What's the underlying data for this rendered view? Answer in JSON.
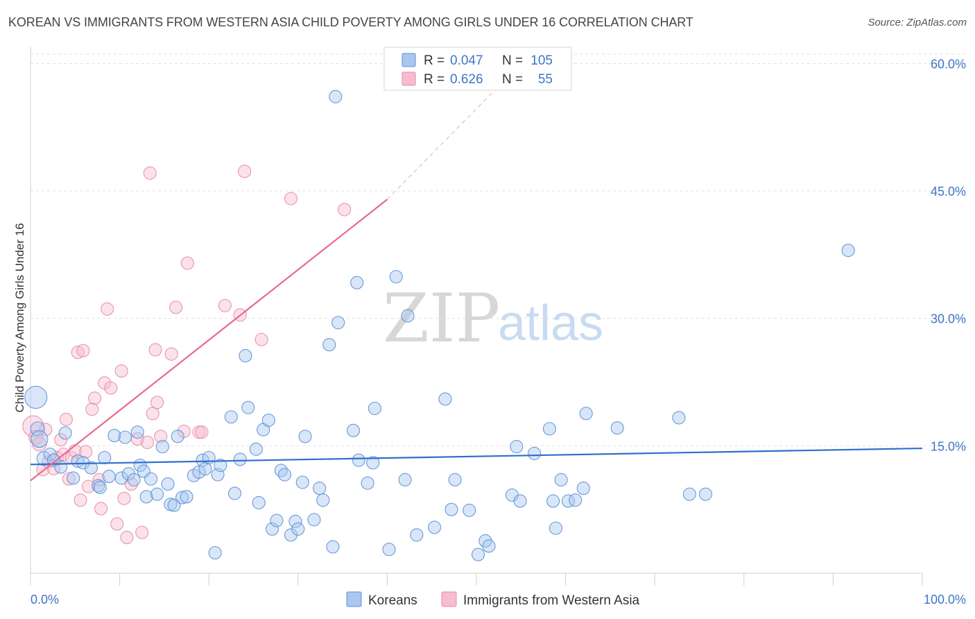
{
  "title": "KOREAN VS IMMIGRANTS FROM WESTERN ASIA CHILD POVERTY AMONG GIRLS UNDER 16 CORRELATION CHART",
  "source": "Source: ZipAtlas.com",
  "watermark": {
    "zip": "ZIP",
    "atlas": "atlas"
  },
  "colors": {
    "korean_fill": "#a9c7ef",
    "korean_stroke": "#5b8fd6",
    "korean_line": "#2f6fcf",
    "wa_fill": "#f6bcd0",
    "wa_stroke": "#e58aa9",
    "wa_line": "#e8688e",
    "tick": "#3d75c6",
    "grid": "#e2e2e2"
  },
  "legend": {
    "rows": [
      {
        "r_label": "R =",
        "r_value": "0.047",
        "n_label": "N =",
        "n_value": "105"
      },
      {
        "r_label": "R =",
        "r_value": "0.626",
        "n_label": "N =",
        "n_value": "55"
      }
    ]
  },
  "chart_data": {
    "type": "scatter",
    "ylabel": "Child Poverty Among Girls Under 16",
    "xlim": [
      0,
      100
    ],
    "ylim": [
      0,
      62
    ],
    "y_ticks": [
      {
        "value": 15,
        "label": "15.0%"
      },
      {
        "value": 30,
        "label": "30.0%"
      },
      {
        "value": 45,
        "label": "45.0%"
      },
      {
        "value": 60,
        "label": "60.0%"
      }
    ],
    "x_tick_labels": [
      {
        "value": 0,
        "label": "0.0%"
      },
      {
        "value": 100,
        "label": "100.0%"
      }
    ],
    "x_minor_ticks": [
      0,
      10,
      20,
      30,
      40,
      50,
      60,
      70,
      80,
      90,
      100
    ],
    "grid": true,
    "legend_position": "top-center",
    "series": [
      {
        "name": "Koreans",
        "trend": {
          "x": [
            0,
            100
          ],
          "y": [
            12.8,
            14.7
          ],
          "dashed_extension": false
        },
        "points": [
          [
            0.6,
            20.7,
            16
          ],
          [
            0.8,
            17.0,
            10
          ],
          [
            1.0,
            15.8,
            12
          ],
          [
            1.5,
            13.5,
            10
          ],
          [
            2.2,
            14.0,
            9
          ],
          [
            2.6,
            13.3,
            9
          ],
          [
            3.4,
            12.5,
            9
          ],
          [
            3.9,
            16.5,
            9
          ],
          [
            4.8,
            11.2,
            9
          ],
          [
            5.3,
            13.2,
            9
          ],
          [
            5.9,
            13.0,
            9
          ],
          [
            6.8,
            12.4,
            9
          ],
          [
            7.6,
            10.3,
            9
          ],
          [
            7.8,
            10.1,
            9
          ],
          [
            8.3,
            13.6,
            9
          ],
          [
            8.8,
            11.4,
            9
          ],
          [
            9.4,
            16.2,
            9
          ],
          [
            10.2,
            11.2,
            9
          ],
          [
            10.6,
            16.0,
            9
          ],
          [
            11.0,
            11.7,
            9
          ],
          [
            11.6,
            11.0,
            9
          ],
          [
            12.0,
            16.6,
            9
          ],
          [
            12.3,
            12.7,
            9
          ],
          [
            12.7,
            12.0,
            9
          ],
          [
            13.0,
            9.0,
            9
          ],
          [
            13.5,
            11.1,
            9
          ],
          [
            14.2,
            9.3,
            9
          ],
          [
            14.8,
            14.9,
            9
          ],
          [
            15.4,
            10.5,
            9
          ],
          [
            15.7,
            8.1,
            9
          ],
          [
            16.1,
            8.0,
            9
          ],
          [
            16.5,
            16.1,
            9
          ],
          [
            17.0,
            8.9,
            9
          ],
          [
            17.5,
            9.0,
            9
          ],
          [
            18.3,
            11.5,
            9
          ],
          [
            18.9,
            11.9,
            9
          ],
          [
            19.3,
            13.3,
            9
          ],
          [
            19.6,
            12.3,
            9
          ],
          [
            20.0,
            13.6,
            9
          ],
          [
            20.7,
            2.4,
            9
          ],
          [
            21.0,
            11.6,
            9
          ],
          [
            21.3,
            12.7,
            9
          ],
          [
            22.5,
            18.4,
            9
          ],
          [
            22.9,
            9.4,
            9
          ],
          [
            23.5,
            13.4,
            9
          ],
          [
            24.1,
            25.6,
            9
          ],
          [
            24.4,
            19.5,
            9
          ],
          [
            25.3,
            14.6,
            9
          ],
          [
            25.6,
            8.3,
            9
          ],
          [
            26.1,
            16.9,
            9
          ],
          [
            26.7,
            18.0,
            9
          ],
          [
            27.1,
            5.2,
            9
          ],
          [
            27.6,
            6.2,
            9
          ],
          [
            28.1,
            12.1,
            9
          ],
          [
            28.5,
            11.6,
            9
          ],
          [
            29.2,
            4.5,
            9
          ],
          [
            29.7,
            6.1,
            9
          ],
          [
            30.0,
            5.2,
            9
          ],
          [
            30.5,
            10.7,
            9
          ],
          [
            30.8,
            16.1,
            9
          ],
          [
            31.8,
            6.3,
            9
          ],
          [
            32.4,
            10.0,
            9
          ],
          [
            32.8,
            8.6,
            9
          ],
          [
            33.5,
            26.9,
            9
          ],
          [
            33.9,
            3.1,
            9
          ],
          [
            34.2,
            56.1,
            9
          ],
          [
            34.5,
            29.5,
            9
          ],
          [
            36.2,
            16.8,
            9
          ],
          [
            36.6,
            34.2,
            9
          ],
          [
            36.8,
            13.3,
            9
          ],
          [
            37.8,
            10.6,
            9
          ],
          [
            38.4,
            13.0,
            9
          ],
          [
            38.6,
            19.4,
            9
          ],
          [
            40.2,
            2.8,
            9
          ],
          [
            41.0,
            34.9,
            9
          ],
          [
            42.0,
            11.0,
            9
          ],
          [
            42.3,
            30.3,
            9
          ],
          [
            43.3,
            4.5,
            9
          ],
          [
            45.3,
            5.4,
            9
          ],
          [
            46.5,
            20.5,
            9
          ],
          [
            47.2,
            7.5,
            9
          ],
          [
            47.6,
            11.0,
            9
          ],
          [
            49.2,
            7.4,
            9
          ],
          [
            50.2,
            2.2,
            9
          ],
          [
            51.0,
            3.8,
            9
          ],
          [
            51.4,
            3.2,
            9
          ],
          [
            54.0,
            9.2,
            9
          ],
          [
            54.5,
            14.9,
            9
          ],
          [
            54.9,
            8.5,
            9
          ],
          [
            56.5,
            14.1,
            9
          ],
          [
            58.2,
            17.0,
            9
          ],
          [
            58.6,
            8.5,
            9
          ],
          [
            58.9,
            5.3,
            9
          ],
          [
            59.5,
            11.0,
            9
          ],
          [
            60.3,
            8.5,
            9
          ],
          [
            61.1,
            8.6,
            9
          ],
          [
            62.0,
            10.0,
            9
          ],
          [
            62.3,
            18.8,
            9
          ],
          [
            65.8,
            17.1,
            9
          ],
          [
            72.7,
            18.3,
            9
          ],
          [
            73.9,
            9.3,
            9
          ],
          [
            75.7,
            9.3,
            9
          ],
          [
            91.7,
            38.0,
            9
          ]
        ]
      },
      {
        "name": "Immigrants from Western Asia",
        "trend": {
          "x": [
            0,
            40
          ],
          "y": [
            10.9,
            44.0
          ],
          "dashed_extension": true,
          "dashed_to": [
            55,
            60
          ]
        },
        "points": [
          [
            0.3,
            17.3,
            15
          ],
          [
            0.6,
            16.0,
            10
          ],
          [
            1.0,
            15.2,
            10
          ],
          [
            1.4,
            12.2,
            9
          ],
          [
            1.7,
            16.9,
            9
          ],
          [
            2.0,
            13.1,
            9
          ],
          [
            2.6,
            12.3,
            9
          ],
          [
            3.0,
            13.6,
            9
          ],
          [
            3.4,
            15.7,
            9
          ],
          [
            3.7,
            14.0,
            9
          ],
          [
            4.0,
            18.1,
            9
          ],
          [
            4.3,
            11.1,
            9
          ],
          [
            4.6,
            13.6,
            9
          ],
          [
            5.0,
            14.4,
            9
          ],
          [
            5.3,
            26.0,
            9
          ],
          [
            5.6,
            8.6,
            9
          ],
          [
            5.9,
            26.2,
            9
          ],
          [
            6.2,
            14.3,
            9
          ],
          [
            6.5,
            10.2,
            9
          ],
          [
            6.9,
            19.3,
            9
          ],
          [
            7.2,
            20.6,
            9
          ],
          [
            7.7,
            11.0,
            9
          ],
          [
            7.9,
            7.6,
            9
          ],
          [
            8.3,
            22.4,
            9
          ],
          [
            8.6,
            31.1,
            9
          ],
          [
            9.0,
            21.8,
            9
          ],
          [
            9.7,
            5.8,
            9
          ],
          [
            10.2,
            23.8,
            9
          ],
          [
            10.5,
            8.8,
            9
          ],
          [
            10.8,
            4.2,
            9
          ],
          [
            11.3,
            10.5,
            9
          ],
          [
            12.0,
            15.8,
            9
          ],
          [
            12.5,
            4.8,
            9
          ],
          [
            13.1,
            15.4,
            9
          ],
          [
            13.4,
            47.1,
            9
          ],
          [
            13.7,
            18.8,
            9
          ],
          [
            14.0,
            26.3,
            9
          ],
          [
            14.2,
            20.1,
            9
          ],
          [
            14.6,
            16.1,
            9
          ],
          [
            15.8,
            25.8,
            9
          ],
          [
            16.3,
            31.3,
            9
          ],
          [
            17.2,
            16.7,
            9
          ],
          [
            17.6,
            36.5,
            9
          ],
          [
            18.9,
            16.6,
            9
          ],
          [
            19.2,
            16.6,
            9
          ],
          [
            21.8,
            31.5,
            9
          ],
          [
            23.5,
            30.4,
            9
          ],
          [
            24.0,
            47.3,
            9
          ],
          [
            25.9,
            27.5,
            9
          ],
          [
            29.2,
            44.1,
            9
          ],
          [
            35.2,
            42.8,
            9
          ]
        ]
      }
    ]
  }
}
